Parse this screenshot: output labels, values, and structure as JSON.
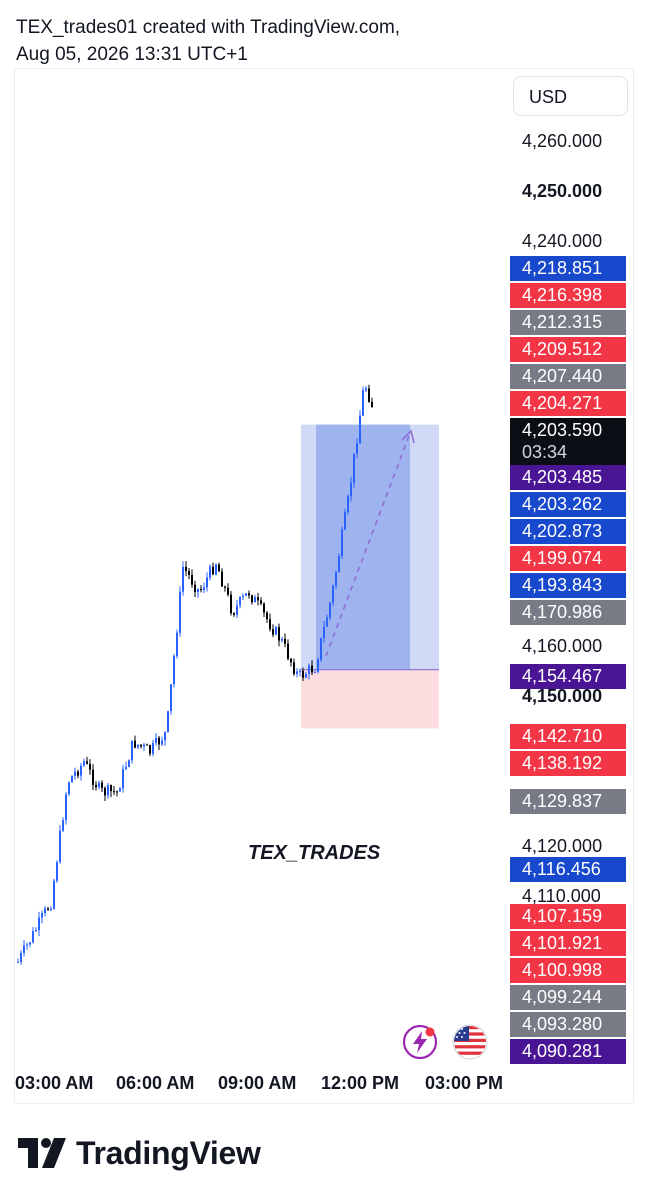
{
  "header": {
    "line1": "TEX_trades01 created with TradingView.com,",
    "line2": "Aug 05, 2026 13:31 UTC+1"
  },
  "currency": "USD",
  "watermark": "TEX_TRADES",
  "brand": "TradingView",
  "colors": {
    "up": "#2962ff",
    "down": "#000000",
    "blue_tag": "#1848cc",
    "red_tag": "#f23645",
    "gray_tag": "#787b86",
    "purple_tag": "#4a1594",
    "black_tag": "#0c0e15",
    "profit_zone": "#9fb3ef",
    "loss_zone": "#fddde0"
  },
  "price_axis": {
    "plain_labels": [
      {
        "text": "4,260.000",
        "bold": false
      },
      {
        "text": "4,250.000",
        "bold": true
      },
      {
        "text": "4,240.000",
        "bold": false
      },
      {
        "text": "4,160.000",
        "bold": false
      },
      {
        "text": "4,150.000",
        "bold": true
      },
      {
        "text": "4,120.000",
        "bold": false
      },
      {
        "text": "4,110.000",
        "bold": false
      }
    ],
    "tags": [
      {
        "text": "4,218.851",
        "color": "#1848cc"
      },
      {
        "text": "4,216.398",
        "color": "#f23645"
      },
      {
        "text": "4,212.315",
        "color": "#787b86"
      },
      {
        "text": "4,209.512",
        "color": "#f23645"
      },
      {
        "text": "4,207.440",
        "color": "#787b86"
      },
      {
        "text": "4,204.271",
        "color": "#f23645"
      },
      {
        "text": "4,203.590",
        "sub": "03:34",
        "color": "#0c0e15"
      },
      {
        "text": "4,203.485",
        "color": "#4a1594"
      },
      {
        "text": "4,203.262",
        "color": "#1848cc"
      },
      {
        "text": "4,202.873",
        "color": "#1848cc"
      },
      {
        "text": "4,199.074",
        "color": "#f23645"
      },
      {
        "text": "4,193.843",
        "color": "#1848cc"
      },
      {
        "text": "4,170.986",
        "color": "#787b86"
      },
      {
        "text": "4,154.467",
        "color": "#4a1594"
      },
      {
        "text": "4,142.710",
        "color": "#f23645"
      },
      {
        "text": "4,138.192",
        "color": "#f23645"
      },
      {
        "text": "4,129.837",
        "color": "#787b86"
      },
      {
        "text": "4,116.456",
        "color": "#1848cc"
      },
      {
        "text": "4,107.159",
        "color": "#f23645"
      },
      {
        "text": "4,101.921",
        "color": "#f23645"
      },
      {
        "text": "4,100.998",
        "color": "#f23645"
      },
      {
        "text": "4,099.244",
        "color": "#787b86"
      },
      {
        "text": "4,093.280",
        "color": "#787b86"
      },
      {
        "text": "4,090.281",
        "color": "#4a1594"
      }
    ]
  },
  "time_axis": [
    "03:00 AM",
    "06:00 AM",
    "09:00 AM",
    "12:00 PM",
    "03:00 PM"
  ],
  "icons": [
    "lightning-icon",
    "us-flag-icon"
  ],
  "chart_data": {
    "type": "candlestick",
    "x_ticks": [
      "03:00 AM",
      "06:00 AM",
      "09:00 AM",
      "12:00 PM",
      "03:00 PM"
    ],
    "y_range": [
      4087,
      4266
    ],
    "close_path": [
      [
        "03:00 AM",
        4096
      ],
      [
        "04:00 AM",
        4108
      ],
      [
        "04:30 AM",
        4132
      ],
      [
        "05:00 AM",
        4136
      ],
      [
        "05:30 AM",
        4130
      ],
      [
        "06:00 AM",
        4130
      ],
      [
        "06:30 AM",
        4140
      ],
      [
        "07:00 AM",
        4138
      ],
      [
        "07:30 AM",
        4142
      ],
      [
        "08:00 AM",
        4175
      ],
      [
        "08:30 AM",
        4170
      ],
      [
        "09:00 AM",
        4176
      ],
      [
        "09:30 AM",
        4166
      ],
      [
        "10:00 AM",
        4170
      ],
      [
        "10:30 AM",
        4165
      ],
      [
        "11:00 AM",
        4160
      ],
      [
        "11:30 AM",
        4153
      ],
      [
        "12:00 PM",
        4155
      ],
      [
        "12:30 PM",
        4169
      ],
      [
        "01:00 PM",
        4188
      ],
      [
        "01:30 PM",
        4212
      ],
      [
        "01:45 PM",
        4207
      ]
    ],
    "session_high": 4213,
    "session_low": 4149,
    "position": {
      "type": "long",
      "entry": 4154.467,
      "target": 4203.485,
      "stop": 4142.71
    },
    "last_price": 4203.59,
    "countdown": "03:34"
  }
}
